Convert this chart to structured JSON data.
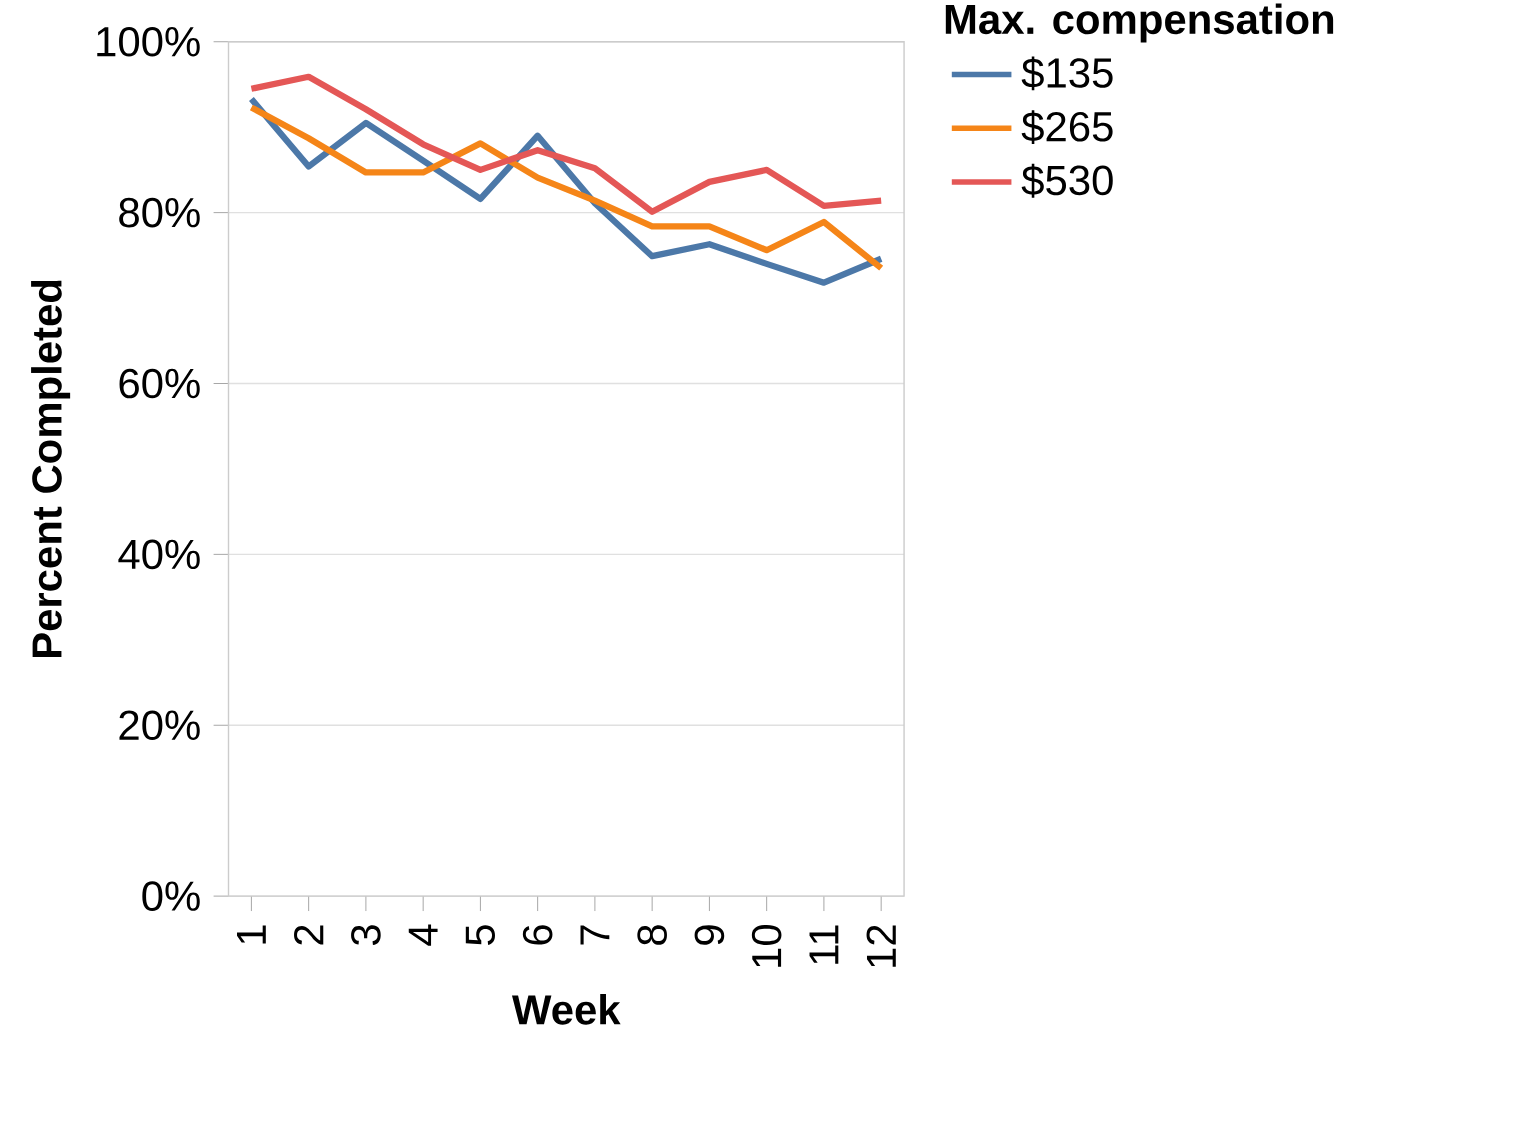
{
  "chart_data": {
    "type": "line",
    "xlabel": "Week",
    "ylabel": "Percent Completed",
    "legend_title": "Max. compensation",
    "categories": [
      "1",
      "2",
      "3",
      "4",
      "5",
      "6",
      "7",
      "8",
      "9",
      "10",
      "11",
      "12"
    ],
    "series": [
      {
        "name": "$135",
        "color": "#4c78a8",
        "values": [
          93.3,
          85.4,
          90.5,
          86.1,
          81.6,
          89.0,
          81.1,
          74.9,
          76.3,
          74.0,
          71.8,
          74.6
        ]
      },
      {
        "name": "$265",
        "color": "#f58518",
        "values": [
          92.3,
          88.7,
          84.7,
          84.7,
          88.1,
          84.1,
          81.4,
          78.4,
          78.4,
          75.6,
          78.9,
          73.5
        ]
      },
      {
        "name": "$530",
        "color": "#e45756",
        "values": [
          94.5,
          95.9,
          92.1,
          88.0,
          85.0,
          87.3,
          85.2,
          80.1,
          83.6,
          85.0,
          80.8,
          81.4
        ]
      }
    ],
    "ylim": [
      0,
      100
    ],
    "yticks": [
      {
        "value": 0,
        "label": "0%"
      },
      {
        "value": 20,
        "label": "20%"
      },
      {
        "value": 40,
        "label": "40%"
      },
      {
        "value": 60,
        "label": "60%"
      },
      {
        "value": 80,
        "label": "80%"
      },
      {
        "value": 100,
        "label": "100%"
      }
    ],
    "grid": "y",
    "legend": "top right",
    "marker": "none",
    "line_style": "solid"
  }
}
